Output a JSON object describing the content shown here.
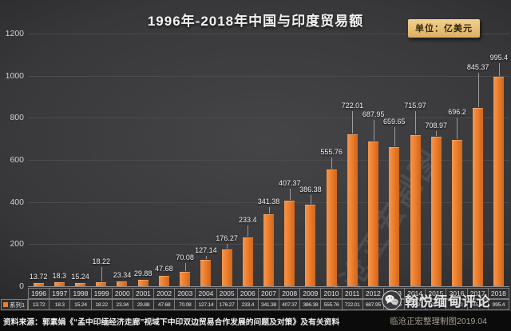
{
  "title": "1996年-2018年中国与印度贸易额",
  "unit_badge": "单位：亿美元",
  "chart_data": {
    "type": "bar",
    "title": "1996年-2018年中国与印度贸易额",
    "unit": "亿美元",
    "series_name": "系列1",
    "categories": [
      "1996",
      "1997",
      "1998",
      "1999",
      "2000",
      "2001",
      "2002",
      "2003",
      "2004",
      "2005",
      "2006",
      "2007",
      "2008",
      "2009",
      "2010",
      "2011",
      "2012",
      "2013",
      "2014",
      "2015",
      "2016",
      "2017",
      "2018"
    ],
    "values": [
      13.72,
      18.3,
      15.24,
      18.22,
      23.34,
      29.88,
      47.68,
      70.08,
      127.14,
      176.27,
      233.4,
      341.38,
      407.37,
      386.38,
      555.76,
      722.01,
      687.95,
      659.65,
      715.97,
      708.97,
      696.2,
      845.37,
      995.4
    ],
    "value_labels": [
      "13.72",
      "18.3",
      "15.24",
      "18.22",
      "23.34",
      "29.88",
      "47.68",
      "70.08",
      "127.14",
      "176.27",
      "233.4",
      "341.38",
      "407.37",
      "386.38",
      "555.76",
      "722.01",
      "687.95",
      "659.65",
      "715.97",
      "708.97",
      "696.2",
      "845.37",
      "995.4"
    ],
    "y_ticks": [
      0,
      200,
      400,
      600,
      800,
      1000,
      1200
    ],
    "ylim": [
      0,
      1200
    ],
    "xlabel": "",
    "ylabel": "",
    "grid": true,
    "legend_position": "table-left",
    "bar_color": "#ee7e2d",
    "background_color": "#38383a",
    "label_offsets": [
      2,
      2,
      2,
      20,
      2,
      2,
      3,
      12,
      6,
      8,
      16,
      10,
      16,
      13,
      16,
      30,
      28,
      26,
      31,
      8,
      29,
      45,
      18
    ]
  },
  "watermarks": {
    "diagonal": "临沧正宏制图",
    "wechat_text": "翰悦缅甸评论",
    "wechat_icon": "wechat-icon"
  },
  "footer": {
    "source": "资料来源：郭素娟《“孟中印缅经济走廊”视域下中印双边贸易合作发展的问题及对策》及有关资料",
    "credit": "临沧正宏整理制图2019.04"
  }
}
